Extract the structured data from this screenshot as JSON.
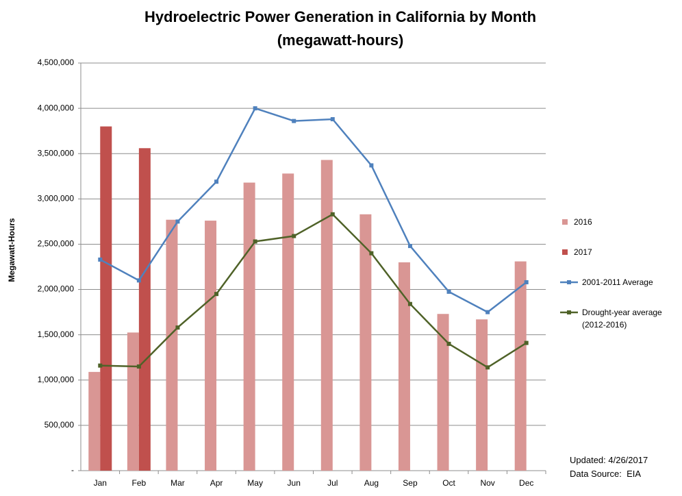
{
  "chart_data": {
    "type": "combo",
    "title": "Hydroelectric Power Generation in California by Month",
    "subtitle": "(megawatt-hours)",
    "y_label": "Megawatt-Hours",
    "categories": [
      "Jan",
      "Feb",
      "Mar",
      "Apr",
      "May",
      "Jun",
      "Jul",
      "Aug",
      "Sep",
      "Oct",
      "Nov",
      "Dec"
    ],
    "series": [
      {
        "name": "2016",
        "type": "bar",
        "color": "#d99694",
        "values": [
          1090000,
          1525000,
          2770000,
          2760000,
          3180000,
          3280000,
          3430000,
          2830000,
          2300000,
          1730000,
          1670000,
          2310000
        ]
      },
      {
        "name": "2017",
        "type": "bar",
        "color": "#c0504d",
        "values": [
          3800000,
          3560000,
          null,
          null,
          null,
          null,
          null,
          null,
          null,
          null,
          null,
          null
        ]
      },
      {
        "name": "2001-2011 Average",
        "type": "line",
        "color": "#4f81bd",
        "values": [
          2330000,
          2100000,
          2750000,
          3190000,
          4000000,
          3860000,
          3880000,
          3370000,
          2480000,
          1975000,
          1750000,
          2080000
        ]
      },
      {
        "name": "Drought-year average (2012-2016)",
        "type": "line",
        "color": "#4f6228",
        "values": [
          1160000,
          1150000,
          1580000,
          1950000,
          2530000,
          2590000,
          2830000,
          2400000,
          1840000,
          1400000,
          1140000,
          1410000
        ]
      }
    ],
    "ylim": [
      0,
      4500000
    ],
    "yticks": [
      {
        "value": 0,
        "label": "-"
      },
      {
        "value": 500000,
        "label": "500,000"
      },
      {
        "value": 1000000,
        "label": "1,000,000"
      },
      {
        "value": 1500000,
        "label": "1,500,000"
      },
      {
        "value": 2000000,
        "label": "2,000,000"
      },
      {
        "value": 2500000,
        "label": "2,500,000"
      },
      {
        "value": 3000000,
        "label": "3,000,000"
      },
      {
        "value": 3500000,
        "label": "3,500,000"
      },
      {
        "value": 4000000,
        "label": "4,000,000"
      },
      {
        "value": 4500000,
        "label": "4,500,000"
      }
    ],
    "grid": true,
    "legend": "right",
    "annotations": [
      "Updated: 4/26/2017",
      "Data Source:  EIA"
    ]
  }
}
